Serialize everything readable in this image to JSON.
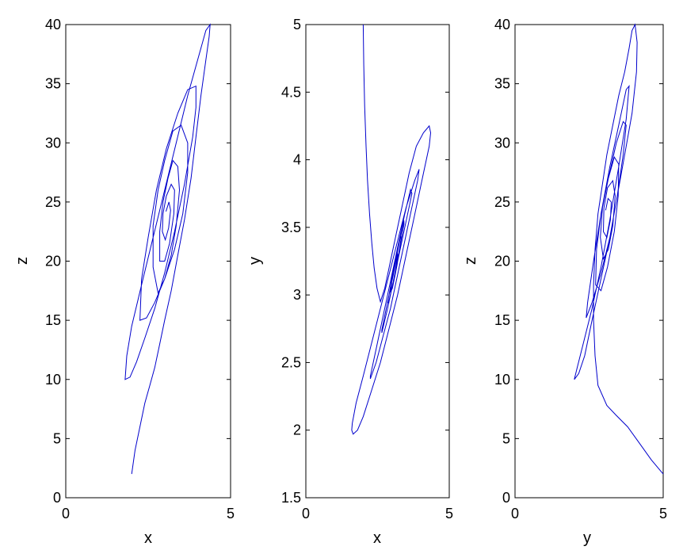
{
  "chart_data": [
    {
      "type": "line",
      "xlabel": "x",
      "ylabel": "z",
      "xlim": [
        0,
        5
      ],
      "ylim": [
        0,
        40
      ],
      "xticks": [
        "0",
        "5"
      ],
      "yticks": [
        "0",
        "5",
        "10",
        "15",
        "20",
        "25",
        "30",
        "35",
        "40"
      ],
      "line_color": "#0000cc",
      "series": [
        {
          "x": [
            2.0,
            2.1,
            2.25,
            2.4,
            2.55,
            2.7,
            2.85,
            3.0,
            3.2,
            3.4,
            3.6,
            3.8,
            3.95,
            4.1,
            4.25,
            4.35,
            4.38,
            4.25,
            4.0,
            3.7,
            3.35,
            3.0,
            2.65,
            2.3,
            2.0,
            1.85,
            1.8,
            1.95,
            2.15,
            2.4,
            2.7,
            3.0,
            3.3,
            3.6,
            3.85,
            3.95,
            3.95,
            3.7,
            3.4,
            3.05,
            2.75,
            2.5,
            2.3,
            2.25,
            2.45,
            2.7,
            3.0,
            3.3,
            3.55,
            3.7,
            3.7,
            3.5,
            3.25,
            3.0,
            2.8,
            2.65,
            2.65,
            2.8,
            3.0,
            3.2,
            3.35,
            3.45,
            3.4,
            3.25,
            3.1,
            2.95,
            2.85,
            2.85,
            3.0,
            3.15,
            3.28,
            3.3,
            3.2,
            3.05,
            2.95,
            2.93,
            3.02,
            3.12,
            3.18,
            3.13,
            3.04
          ],
          "y": [
            2.0,
            4.0,
            6.0,
            8.0,
            9.5,
            11.0,
            13.0,
            15.0,
            17.5,
            20.5,
            23.5,
            27.0,
            30.5,
            34.0,
            37.0,
            39.0,
            40.0,
            39.5,
            37.0,
            34.0,
            30.0,
            26.0,
            22.0,
            18.0,
            14.5,
            12.0,
            10.0,
            10.2,
            11.5,
            13.5,
            16.0,
            19.0,
            22.5,
            26.5,
            30.5,
            33.0,
            34.8,
            34.5,
            32.5,
            29.5,
            26.0,
            22.0,
            18.5,
            15.0,
            15.2,
            16.5,
            18.5,
            21.0,
            24.0,
            27.5,
            30.0,
            31.5,
            31.0,
            28.5,
            26.0,
            23.0,
            19.5,
            17.3,
            18.5,
            20.5,
            23.0,
            26.0,
            28.0,
            28.5,
            27.0,
            25.0,
            22.5,
            20.0,
            20.0,
            21.5,
            24.0,
            26.0,
            26.5,
            25.5,
            24.0,
            22.5,
            21.8,
            22.8,
            24.3,
            25.0,
            24.2
          ]
        }
      ]
    },
    {
      "type": "line",
      "xlabel": "x",
      "ylabel": "y",
      "xlim": [
        0,
        5
      ],
      "ylim": [
        1.5,
        5
      ],
      "xticks": [
        "0",
        "5"
      ],
      "yticks": [
        "1.5",
        "2",
        "2.5",
        "3",
        "3.5",
        "4",
        "4.5",
        "5"
      ],
      "line_color": "#0000cc",
      "series": [
        {
          "x": [
            2.0,
            2.02,
            2.05,
            2.1,
            2.15,
            2.22,
            2.3,
            2.38,
            2.48,
            2.6,
            2.75,
            2.9,
            3.05,
            3.2,
            3.4,
            3.6,
            3.85,
            4.1,
            4.3,
            4.35,
            4.3,
            4.1,
            3.8,
            3.5,
            3.2,
            2.9,
            2.6,
            2.3,
            2.0,
            1.8,
            1.65,
            1.6,
            1.62,
            1.75,
            2.0,
            2.3,
            2.6,
            2.9,
            3.2,
            3.5,
            3.8,
            3.95,
            3.9,
            3.7,
            3.45,
            3.2,
            2.95,
            2.7,
            2.45,
            2.25,
            2.25,
            2.45,
            2.7,
            2.95,
            3.2,
            3.45,
            3.65,
            3.7,
            3.5,
            3.3,
            3.05,
            2.85,
            2.65,
            2.65,
            2.85,
            3.05,
            3.25,
            3.42,
            3.42,
            3.25,
            3.05,
            2.88,
            2.86,
            3.0,
            3.15,
            3.3,
            3.32,
            3.18,
            3.02,
            2.95,
            3.05,
            3.18,
            3.2,
            3.1,
            3.04
          ],
          "y": [
            5.0,
            4.7,
            4.4,
            4.1,
            3.85,
            3.6,
            3.38,
            3.2,
            3.05,
            2.95,
            3.05,
            3.2,
            3.35,
            3.5,
            3.7,
            3.9,
            4.1,
            4.2,
            4.25,
            4.2,
            4.1,
            3.9,
            3.6,
            3.3,
            3.0,
            2.75,
            2.5,
            2.3,
            2.1,
            2.0,
            1.97,
            2.0,
            2.05,
            2.2,
            2.4,
            2.65,
            2.9,
            3.15,
            3.4,
            3.65,
            3.85,
            3.93,
            3.85,
            3.65,
            3.4,
            3.15,
            2.9,
            2.7,
            2.5,
            2.38,
            2.4,
            2.6,
            2.85,
            3.1,
            3.35,
            3.6,
            3.78,
            3.75,
            3.55,
            3.35,
            3.1,
            2.9,
            2.72,
            2.74,
            2.95,
            3.15,
            3.38,
            3.55,
            3.52,
            3.32,
            3.1,
            2.94,
            2.95,
            3.12,
            3.3,
            3.45,
            3.42,
            3.22,
            3.05,
            3.02,
            3.18,
            3.32,
            3.3,
            3.15,
            3.08
          ]
        }
      ]
    },
    {
      "type": "line",
      "xlabel": "y",
      "ylabel": "z",
      "xlim": [
        0,
        5
      ],
      "ylim": [
        0,
        40
      ],
      "xticks": [
        "0",
        "5"
      ],
      "yticks": [
        "0",
        "5",
        "10",
        "15",
        "20",
        "25",
        "30",
        "35",
        "40"
      ],
      "line_color": "#0000cc",
      "series": [
        {
          "x": [
            5.0,
            4.6,
            4.2,
            3.8,
            3.4,
            3.1,
            2.8,
            2.7,
            2.65,
            2.65,
            2.7,
            2.8,
            2.95,
            3.1,
            3.3,
            3.5,
            3.7,
            3.85,
            3.95,
            4.05,
            4.12,
            4.1,
            3.95,
            3.7,
            3.45,
            3.2,
            2.9,
            2.6,
            2.35,
            2.15,
            2.0,
            2.1,
            2.3,
            2.6,
            2.9,
            3.2,
            3.5,
            3.75,
            3.85,
            3.75,
            3.5,
            3.2,
            2.9,
            2.65,
            2.45,
            2.4,
            2.6,
            2.9,
            3.2,
            3.45,
            3.65,
            3.75,
            3.65,
            3.42,
            3.15,
            2.9,
            2.75,
            2.72,
            2.9,
            3.12,
            3.35,
            3.48,
            3.5,
            3.35,
            3.15,
            2.95,
            2.88,
            2.98,
            3.15,
            3.3,
            3.38,
            3.3,
            3.12,
            3.0,
            2.98,
            3.1,
            3.22,
            3.25,
            3.14,
            3.06
          ],
          "y": [
            2.0,
            3.2,
            4.6,
            6.0,
            7.0,
            7.8,
            9.5,
            12.0,
            15.0,
            18.0,
            21.0,
            24.0,
            26.5,
            29.0,
            31.5,
            34.0,
            36.0,
            38.0,
            39.5,
            40.0,
            38.5,
            36.0,
            32.5,
            29.0,
            25.5,
            22.0,
            18.5,
            15.0,
            12.0,
            10.5,
            10.0,
            11.0,
            13.0,
            16.0,
            19.5,
            23.5,
            28.0,
            32.0,
            34.8,
            34.5,
            31.5,
            28.0,
            24.0,
            20.0,
            16.5,
            15.2,
            16.5,
            19.0,
            22.0,
            25.5,
            29.0,
            31.5,
            31.8,
            30.0,
            27.0,
            24.0,
            21.0,
            18.0,
            17.5,
            19.5,
            22.5,
            25.5,
            28.2,
            28.8,
            27.0,
            24.5,
            22.0,
            20.2,
            21.0,
            23.0,
            25.5,
            26.8,
            26.2,
            24.5,
            22.5,
            22.0,
            23.5,
            25.0,
            25.3,
            24.3
          ]
        }
      ]
    }
  ]
}
